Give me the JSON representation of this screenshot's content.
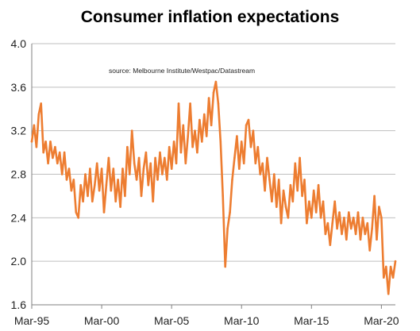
{
  "chart_data": {
    "type": "line",
    "title": "Consumer inflation expectations",
    "annotation": "source:   Melbourne  Institute/Westpac/Datastream",
    "xlabel": "",
    "ylabel": "",
    "ylim": [
      1.6,
      4.0
    ],
    "yticks": [
      1.6,
      2.0,
      2.4,
      2.8,
      3.2,
      3.6,
      4.0
    ],
    "ytick_labels": [
      "1.6",
      "2.0",
      "2.4",
      "2.8",
      "3.2",
      "3.6",
      "4.0"
    ],
    "xlim": [
      "1995-03",
      "2021-03"
    ],
    "xticks": [
      "1995-03",
      "2000-03",
      "2005-03",
      "2010-03",
      "2015-03",
      "2020-03"
    ],
    "xtick_labels": [
      "Mar-95",
      "Mar-00",
      "Mar-05",
      "Mar-10",
      "Mar-15",
      "Mar-20"
    ],
    "grid": "horizontal",
    "legend": "none",
    "colors": {
      "line": "#ED7D31",
      "grid": "#BFBFBF",
      "axis": "#808080"
    },
    "series": [
      {
        "points": [
          [
            "1995-03",
            3.1
          ],
          [
            "1995-05",
            3.25
          ],
          [
            "1995-07",
            3.05
          ],
          [
            "1995-09",
            3.35
          ],
          [
            "1995-11",
            3.45
          ],
          [
            "1996-01",
            3.0
          ],
          [
            "1996-03",
            3.1
          ],
          [
            "1996-05",
            2.9
          ],
          [
            "1996-07",
            3.1
          ],
          [
            "1996-09",
            2.95
          ],
          [
            "1996-11",
            3.05
          ],
          [
            "1997-01",
            2.9
          ],
          [
            "1997-03",
            3.0
          ],
          [
            "1997-05",
            2.8
          ],
          [
            "1997-07",
            3.0
          ],
          [
            "1997-09",
            2.75
          ],
          [
            "1997-11",
            2.85
          ],
          [
            "1998-01",
            2.65
          ],
          [
            "1998-03",
            2.75
          ],
          [
            "1998-05",
            2.45
          ],
          [
            "1998-07",
            2.4
          ],
          [
            "1998-09",
            2.7
          ],
          [
            "1998-11",
            2.55
          ],
          [
            "1999-01",
            2.8
          ],
          [
            "1999-03",
            2.6
          ],
          [
            "1999-05",
            2.85
          ],
          [
            "1999-07",
            2.55
          ],
          [
            "1999-09",
            2.7
          ],
          [
            "1999-11",
            2.9
          ],
          [
            "2000-01",
            2.65
          ],
          [
            "2000-03",
            2.85
          ],
          [
            "2000-05",
            2.45
          ],
          [
            "2000-07",
            2.7
          ],
          [
            "2000-09",
            2.95
          ],
          [
            "2000-11",
            2.65
          ],
          [
            "2001-01",
            2.85
          ],
          [
            "2001-03",
            2.55
          ],
          [
            "2001-05",
            2.75
          ],
          [
            "2001-07",
            2.5
          ],
          [
            "2001-09",
            2.85
          ],
          [
            "2001-11",
            2.6
          ],
          [
            "2002-01",
            3.05
          ],
          [
            "2002-03",
            2.8
          ],
          [
            "2002-05",
            3.2
          ],
          [
            "2002-07",
            2.9
          ],
          [
            "2002-09",
            2.75
          ],
          [
            "2002-11",
            2.95
          ],
          [
            "2003-01",
            2.6
          ],
          [
            "2003-03",
            2.85
          ],
          [
            "2003-05",
            3.0
          ],
          [
            "2003-07",
            2.7
          ],
          [
            "2003-09",
            2.9
          ],
          [
            "2003-11",
            2.55
          ],
          [
            "2004-01",
            2.95
          ],
          [
            "2004-03",
            2.75
          ],
          [
            "2004-05",
            3.0
          ],
          [
            "2004-07",
            2.8
          ],
          [
            "2004-09",
            2.95
          ],
          [
            "2004-11",
            2.75
          ],
          [
            "2005-01",
            3.05
          ],
          [
            "2005-03",
            2.85
          ],
          [
            "2005-05",
            3.1
          ],
          [
            "2005-07",
            2.9
          ],
          [
            "2005-09",
            3.45
          ],
          [
            "2005-11",
            3.0
          ],
          [
            "2006-01",
            3.25
          ],
          [
            "2006-03",
            2.9
          ],
          [
            "2006-05",
            3.15
          ],
          [
            "2006-07",
            3.45
          ],
          [
            "2006-09",
            3.05
          ],
          [
            "2006-11",
            3.2
          ],
          [
            "2007-01",
            3.0
          ],
          [
            "2007-03",
            3.3
          ],
          [
            "2007-05",
            3.1
          ],
          [
            "2007-07",
            3.35
          ],
          [
            "2007-09",
            3.15
          ],
          [
            "2007-11",
            3.5
          ],
          [
            "2008-01",
            3.25
          ],
          [
            "2008-03",
            3.55
          ],
          [
            "2008-05",
            3.65
          ],
          [
            "2008-07",
            3.45
          ],
          [
            "2008-09",
            3.1
          ],
          [
            "2008-11",
            2.6
          ],
          [
            "2009-01",
            1.95
          ],
          [
            "2009-03",
            2.3
          ],
          [
            "2009-05",
            2.45
          ],
          [
            "2009-07",
            2.75
          ],
          [
            "2009-09",
            2.95
          ],
          [
            "2009-11",
            3.15
          ],
          [
            "2010-01",
            2.85
          ],
          [
            "2010-03",
            3.1
          ],
          [
            "2010-05",
            2.9
          ],
          [
            "2010-07",
            3.25
          ],
          [
            "2010-09",
            3.3
          ],
          [
            "2010-11",
            3.05
          ],
          [
            "2011-01",
            3.2
          ],
          [
            "2011-03",
            2.9
          ],
          [
            "2011-05",
            3.05
          ],
          [
            "2011-07",
            2.8
          ],
          [
            "2011-09",
            2.9
          ],
          [
            "2011-11",
            2.65
          ],
          [
            "2012-01",
            2.95
          ],
          [
            "2012-03",
            2.75
          ],
          [
            "2012-05",
            2.55
          ],
          [
            "2012-07",
            2.8
          ],
          [
            "2012-09",
            2.5
          ],
          [
            "2012-11",
            2.75
          ],
          [
            "2013-01",
            2.35
          ],
          [
            "2013-03",
            2.65
          ],
          [
            "2013-05",
            2.5
          ],
          [
            "2013-07",
            2.4
          ],
          [
            "2013-09",
            2.7
          ],
          [
            "2013-11",
            2.55
          ],
          [
            "2014-01",
            2.9
          ],
          [
            "2014-03",
            2.65
          ],
          [
            "2014-05",
            2.95
          ],
          [
            "2014-07",
            2.6
          ],
          [
            "2014-09",
            2.75
          ],
          [
            "2014-11",
            2.35
          ],
          [
            "2015-01",
            2.55
          ],
          [
            "2015-03",
            2.4
          ],
          [
            "2015-05",
            2.65
          ],
          [
            "2015-07",
            2.45
          ],
          [
            "2015-09",
            2.7
          ],
          [
            "2015-11",
            2.4
          ],
          [
            "2016-01",
            2.55
          ],
          [
            "2016-03",
            2.25
          ],
          [
            "2016-05",
            2.35
          ],
          [
            "2016-07",
            2.15
          ],
          [
            "2016-09",
            2.35
          ],
          [
            "2016-11",
            2.55
          ],
          [
            "2017-01",
            2.3
          ],
          [
            "2017-03",
            2.45
          ],
          [
            "2017-05",
            2.25
          ],
          [
            "2017-07",
            2.4
          ],
          [
            "2017-09",
            2.2
          ],
          [
            "2017-11",
            2.45
          ],
          [
            "2018-01",
            2.3
          ],
          [
            "2018-03",
            2.4
          ],
          [
            "2018-05",
            2.25
          ],
          [
            "2018-07",
            2.45
          ],
          [
            "2018-09",
            2.2
          ],
          [
            "2018-11",
            2.4
          ],
          [
            "2019-01",
            2.25
          ],
          [
            "2019-03",
            2.35
          ],
          [
            "2019-05",
            2.1
          ],
          [
            "2019-07",
            2.3
          ],
          [
            "2019-09",
            2.6
          ],
          [
            "2019-11",
            2.2
          ],
          [
            "2020-01",
            2.5
          ],
          [
            "2020-03",
            2.4
          ],
          [
            "2020-05",
            1.85
          ],
          [
            "2020-07",
            1.95
          ],
          [
            "2020-09",
            1.7
          ],
          [
            "2020-11",
            1.95
          ],
          [
            "2021-01",
            1.85
          ],
          [
            "2021-03",
            2.0
          ]
        ]
      }
    ]
  }
}
